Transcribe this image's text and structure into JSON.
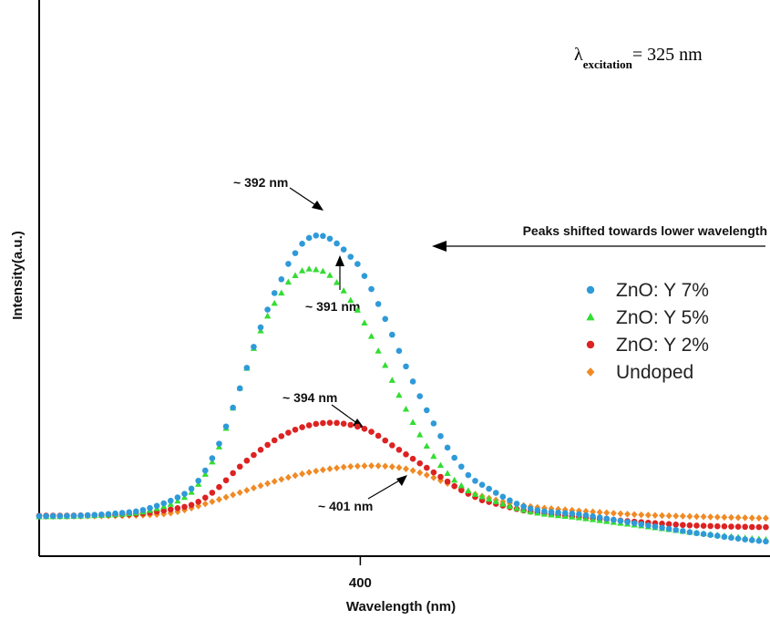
{
  "chart_data": {
    "type": "scatter",
    "xlabel": "Wavelength (nm)",
    "ylabel": "Intensity(a.u.)",
    "xlim": [
      342,
      474
    ],
    "ylim": [
      0,
      100
    ],
    "x_ticks": [
      400
    ],
    "x_tick_labels": [
      "400"
    ],
    "grid": false,
    "legend_position": "right",
    "excitation": {
      "symbol": "λ",
      "subscript": "excitation",
      "value": "= 325 nm"
    },
    "shift_note": "Peaks shifted towards lower wavelength",
    "series": [
      {
        "name": "ZnO: Y 7%",
        "marker": "circle",
        "color": "#2f9ad8",
        "peak_label": "~ 392 nm",
        "x": [
          342,
          350,
          360,
          366,
          370,
          374,
          378,
          382,
          386,
          388,
          390,
          392,
          394,
          396,
          398,
          400,
          404,
          408,
          412,
          416,
          420,
          430,
          440,
          450,
          460,
          474
        ],
        "y": [
          8.6,
          8.8,
          10,
          13,
          17,
          27,
          43,
          61,
          75,
          81,
          85,
          86.5,
          86,
          84,
          81,
          77,
          65,
          51,
          38,
          27,
          19,
          11,
          9,
          6.5,
          4,
          1.5
        ]
      },
      {
        "name": "ZnO: Y 5%",
        "marker": "triangle",
        "color": "#33dd33",
        "peak_label": "~ 391 nm",
        "x": [
          342,
          350,
          360,
          366,
          370,
          374,
          378,
          382,
          386,
          388,
          390,
          392,
          394,
          396,
          398,
          400,
          404,
          408,
          412,
          416,
          420,
          430,
          440,
          450,
          460,
          474
        ],
        "y": [
          8.4,
          8.6,
          9.5,
          12,
          16,
          26,
          43,
          60,
          71,
          75,
          77,
          77,
          76,
          73,
          69,
          64,
          52,
          39,
          28,
          20,
          15,
          10,
          8,
          6,
          4,
          2
        ]
      },
      {
        "name": "ZnO: Y 2%",
        "marker": "circle",
        "color": "#dd2222",
        "peak_label": "~ 394 nm",
        "x": [
          342,
          350,
          360,
          366,
          370,
          374,
          378,
          382,
          386,
          390,
          394,
          398,
          402,
          406,
          410,
          414,
          418,
          422,
          430,
          440,
          450,
          460,
          474
        ],
        "y": [
          8.7,
          8.8,
          9.2,
          10.5,
          12,
          16,
          22,
          27,
          31,
          33.5,
          34.5,
          34,
          32,
          28,
          24,
          20,
          16,
          13,
          10,
          8.3,
          7,
          6,
          5.5
        ]
      },
      {
        "name": "Undoped",
        "marker": "diamond",
        "color": "#f08a24",
        "peak_label": "~ 401 nm",
        "x": [
          342,
          350,
          360,
          366,
          372,
          378,
          384,
          390,
          396,
          400,
          404,
          408,
          412,
          416,
          420,
          426,
          432,
          440,
          450,
          460,
          474
        ],
        "y": [
          8.5,
          8.6,
          8.8,
          9.5,
          12,
          15,
          18,
          20.5,
          22,
          22.5,
          22.5,
          21.8,
          20,
          17.5,
          15,
          12.5,
          11,
          10,
          9,
          8.5,
          8
        ]
      }
    ]
  }
}
